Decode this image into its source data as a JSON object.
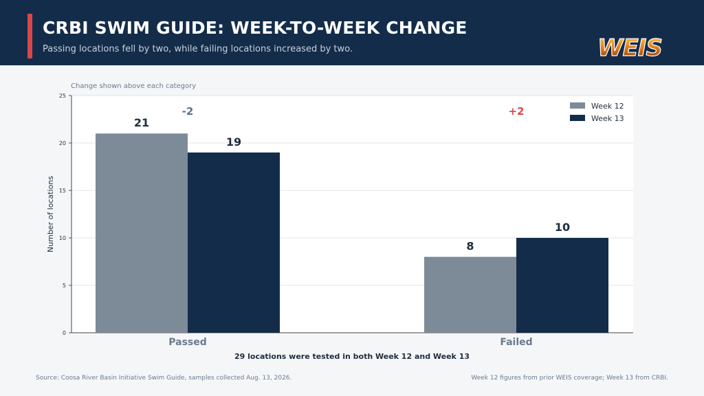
{
  "header": {
    "title": "CRBI SWIM GUIDE: WEEK-TO-WEEK CHANGE",
    "subtitle": "Passing locations fell by two, while failing locations increased by two.",
    "logo_text": "WEIS"
  },
  "chart_data": {
    "type": "bar",
    "note": "Change shown above each category",
    "categories": [
      "Passed",
      "Failed"
    ],
    "series": [
      {
        "name": "Week 12",
        "values": [
          21,
          8
        ],
        "color": "#7d8b98"
      },
      {
        "name": "Week 13",
        "values": [
          19,
          10
        ],
        "color": "#132c4a"
      }
    ],
    "changes": [
      "-2",
      "+2"
    ],
    "change_colors": [
      "#5f7185",
      "#d94848"
    ],
    "ylabel": "Number of locations",
    "xlabel": "29 locations were tested in both Week 12 and Week 13",
    "ylim": [
      0,
      25
    ],
    "yticks": [
      0,
      5,
      10,
      15,
      20,
      25
    ],
    "grid": true,
    "legend_position": "top-right"
  },
  "footer": {
    "source": "Source: Coosa River Basin Initiative Swim Guide, samples collected Aug. 13, 2026.",
    "note": "Week 12 figures from prior WEIS coverage; Week 13 from CRBI."
  }
}
